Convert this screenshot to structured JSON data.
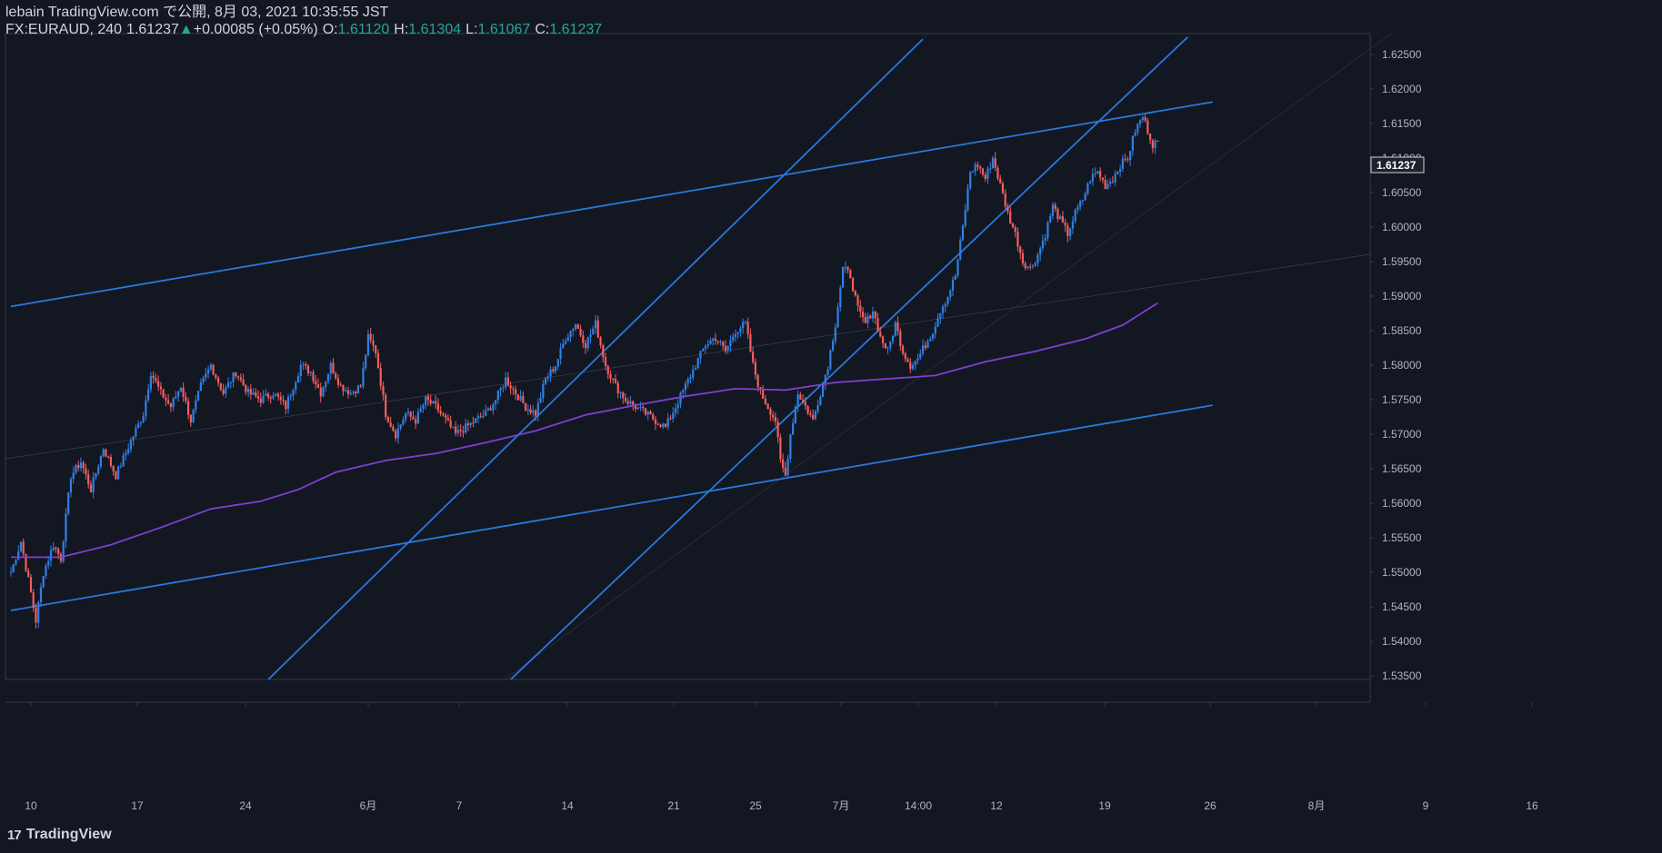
{
  "header": {
    "line1": "lebain TradingView.com で公開, 8月 03, 2021 10:35:55 JST",
    "symbol": "FX:EURAUD, 240",
    "last": "1.61237",
    "arrow": "▲",
    "change": "+0.00085 (+0.05%)",
    "o_label": "O:",
    "o_value": "1.61120",
    "h_label": "H:",
    "h_value": "1.61304",
    "l_label": "L:",
    "l_value": "1.61067",
    "c_label": "C:",
    "c_value": "1.61237"
  },
  "logo": {
    "mark": "17",
    "text": "TradingView"
  },
  "colors": {
    "background": "#131722",
    "up": "#2f80e4",
    "down": "#f25e5e",
    "trendline": "#2879dd",
    "ma": "#7e3fd1",
    "axis_text": "#b2b5be",
    "border": "#363a45"
  },
  "chart_data": {
    "type": "candlestick",
    "symbol": "FX:EURAUD",
    "timeframe": "240",
    "y_axis": {
      "range": [
        1.5345,
        1.628
      ],
      "ticks": [
        "1.62500",
        "1.62000",
        "1.61500",
        "1.61000",
        "1.60500",
        "1.60000",
        "1.59500",
        "1.59000",
        "1.58500",
        "1.58000",
        "1.57500",
        "1.57000",
        "1.56500",
        "1.56000",
        "1.55500",
        "1.55000",
        "1.54500",
        "1.54000",
        "1.53500"
      ],
      "last_price_label": "1.61237"
    },
    "x_axis": {
      "ticks": [
        "10",
        "17",
        "24",
        "6月",
        "7",
        "14",
        "21",
        "25",
        "7月",
        "14:00",
        "12",
        "19",
        "26",
        "8月",
        "9",
        "16"
      ]
    },
    "price_path": [
      [
        0,
        1.55
      ],
      [
        4,
        1.5545
      ],
      [
        8,
        1.547
      ],
      [
        10,
        1.543
      ],
      [
        13,
        1.55
      ],
      [
        17,
        1.554
      ],
      [
        20,
        1.552
      ],
      [
        24,
        1.564
      ],
      [
        28,
        1.566
      ],
      [
        32,
        1.562
      ],
      [
        37,
        1.568
      ],
      [
        42,
        1.564
      ],
      [
        48,
        1.569
      ],
      [
        53,
        1.573
      ],
      [
        56,
        1.579
      ],
      [
        60,
        1.576
      ],
      [
        64,
        1.574
      ],
      [
        68,
        1.577
      ],
      [
        72,
        1.572
      ],
      [
        76,
        1.577
      ],
      [
        80,
        1.58
      ],
      [
        85,
        1.576
      ],
      [
        90,
        1.579
      ],
      [
        95,
        1.576
      ],
      [
        100,
        1.575
      ],
      [
        105,
        1.576
      ],
      [
        110,
        1.574
      ],
      [
        116,
        1.58
      ],
      [
        120,
        1.579
      ],
      [
        124,
        1.576
      ],
      [
        128,
        1.58
      ],
      [
        132,
        1.577
      ],
      [
        136,
        1.576
      ],
      [
        140,
        1.577
      ],
      [
        143,
        1.584
      ],
      [
        146,
        1.582
      ],
      [
        150,
        1.573
      ],
      [
        154,
        1.57
      ],
      [
        158,
        1.573
      ],
      [
        162,
        1.572
      ],
      [
        166,
        1.575
      ],
      [
        170,
        1.574
      ],
      [
        174,
        1.572
      ],
      [
        178,
        1.57
      ],
      [
        182,
        1.571
      ],
      [
        186,
        1.572
      ],
      [
        190,
        1.573
      ],
      [
        194,
        1.575
      ],
      [
        198,
        1.578
      ],
      [
        202,
        1.576
      ],
      [
        206,
        1.574
      ],
      [
        210,
        1.573
      ],
      [
        214,
        1.578
      ],
      [
        218,
        1.58
      ],
      [
        222,
        1.584
      ],
      [
        226,
        1.586
      ],
      [
        230,
        1.583
      ],
      [
        234,
        1.586
      ],
      [
        238,
        1.58
      ],
      [
        242,
        1.577
      ],
      [
        246,
        1.575
      ],
      [
        250,
        1.574
      ],
      [
        254,
        1.573
      ],
      [
        258,
        1.572
      ],
      [
        262,
        1.571
      ],
      [
        266,
        1.574
      ],
      [
        270,
        1.577
      ],
      [
        274,
        1.58
      ],
      [
        278,
        1.583
      ],
      [
        282,
        1.584
      ],
      [
        286,
        1.582
      ],
      [
        290,
        1.585
      ],
      [
        294,
        1.586
      ],
      [
        297,
        1.58
      ],
      [
        300,
        1.576
      ],
      [
        303,
        1.574
      ],
      [
        306,
        1.572
      ],
      [
        308,
        1.566
      ],
      [
        310,
        1.564
      ],
      [
        312,
        1.57
      ],
      [
        315,
        1.576
      ],
      [
        318,
        1.574
      ],
      [
        321,
        1.572
      ],
      [
        324,
        1.576
      ],
      [
        327,
        1.58
      ],
      [
        330,
        1.586
      ],
      [
        333,
        1.594
      ],
      [
        336,
        1.593
      ],
      [
        339,
        1.588
      ],
      [
        342,
        1.586
      ],
      [
        345,
        1.588
      ],
      [
        348,
        1.584
      ],
      [
        351,
        1.582
      ],
      [
        354,
        1.586
      ],
      [
        357,
        1.582
      ],
      [
        360,
        1.58
      ],
      [
        363,
        1.581
      ],
      [
        366,
        1.583
      ],
      [
        369,
        1.585
      ],
      [
        372,
        1.588
      ],
      [
        375,
        1.59
      ],
      [
        378,
        1.593
      ],
      [
        381,
        1.6
      ],
      [
        384,
        1.608
      ],
      [
        387,
        1.609
      ],
      [
        390,
        1.607
      ],
      [
        393,
        1.61
      ],
      [
        396,
        1.606
      ],
      [
        399,
        1.602
      ],
      [
        402,
        1.599
      ],
      [
        405,
        1.595
      ],
      [
        408,
        1.594
      ],
      [
        411,
        1.596
      ],
      [
        414,
        1.599
      ],
      [
        417,
        1.603
      ],
      [
        420,
        1.601
      ],
      [
        423,
        1.599
      ],
      [
        426,
        1.602
      ],
      [
        429,
        1.604
      ],
      [
        432,
        1.607
      ],
      [
        435,
        1.608
      ],
      [
        438,
        1.606
      ],
      [
        441,
        1.607
      ],
      [
        444,
        1.609
      ],
      [
        447,
        1.61
      ],
      [
        450,
        1.614
      ],
      [
        453,
        1.616
      ],
      [
        455,
        1.614
      ],
      [
        457,
        1.612
      ],
      [
        459,
        1.6124
      ]
    ],
    "moving_average": [
      [
        0,
        1.5522
      ],
      [
        20,
        1.5522
      ],
      [
        40,
        1.554
      ],
      [
        60,
        1.5565
      ],
      [
        80,
        1.5592
      ],
      [
        100,
        1.5603
      ],
      [
        115,
        1.562
      ],
      [
        130,
        1.5645
      ],
      [
        150,
        1.5662
      ],
      [
        170,
        1.5672
      ],
      [
        190,
        1.5688
      ],
      [
        210,
        1.5705
      ],
      [
        230,
        1.5728
      ],
      [
        250,
        1.5742
      ],
      [
        270,
        1.5755
      ],
      [
        290,
        1.5766
      ],
      [
        310,
        1.5764
      ],
      [
        330,
        1.5775
      ],
      [
        350,
        1.578
      ],
      [
        370,
        1.5785
      ],
      [
        390,
        1.5805
      ],
      [
        410,
        1.582
      ],
      [
        430,
        1.5838
      ],
      [
        445,
        1.5858
      ],
      [
        459,
        1.589
      ]
    ],
    "trendlines": [
      {
        "from": [
          0,
          1.5885
        ],
        "to": [
          481,
          1.6181
        ]
      },
      {
        "from": [
          0,
          1.5445
        ],
        "to": [
          481,
          1.5742
        ]
      },
      {
        "from": [
          103,
          1.5345
        ],
        "to": [
          365,
          1.6272
        ]
      },
      {
        "from": [
          200,
          1.5345
        ],
        "to": [
          471,
          1.6275
        ]
      }
    ]
  }
}
